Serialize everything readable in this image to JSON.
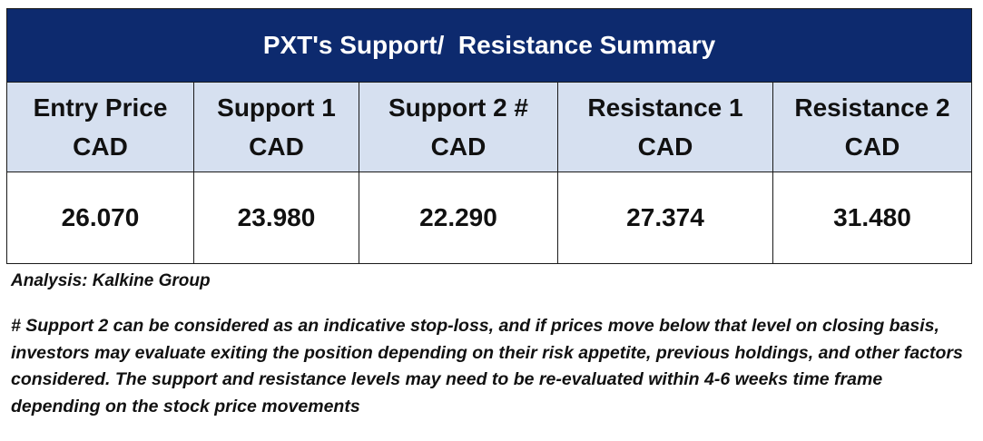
{
  "table": {
    "title": "PXT's Support/  Resistance Summary",
    "columns": [
      {
        "line1": "Entry Price",
        "line2": "CAD",
        "value": "26.070"
      },
      {
        "line1": "Support 1",
        "line2": "CAD",
        "value": "23.980"
      },
      {
        "line1": "Support 2 #",
        "line2": "CAD",
        "value": "22.290"
      },
      {
        "line1": "Resistance 1",
        "line2": "CAD",
        "value": "27.374"
      },
      {
        "line1": "Resistance 2",
        "line2": "CAD",
        "value": "31.480"
      }
    ]
  },
  "analysis_credit": "Analysis: Kalkine Group",
  "footnote": "# Support 2 can be considered as an indicative stop-loss, and if prices move below that level on closing basis, investors may evaluate exiting the position depending on their risk appetite, previous holdings, and other factors considered. The support and resistance levels may need to be re-evaluated within 4-6 weeks time frame depending on the stock price movements",
  "colors": {
    "title_background": "#0d2a6e",
    "header_background": "#d6e0f0",
    "title_text": "#ffffff"
  }
}
